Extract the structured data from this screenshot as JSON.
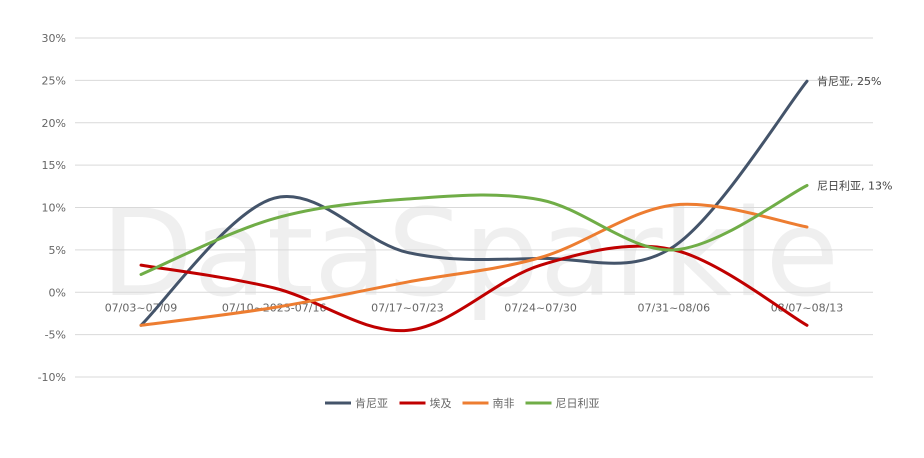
{
  "chart_data": {
    "type": "line",
    "title": "",
    "watermark": "DataSparkle",
    "categories": [
      "07/03~07/09",
      "07/10~2023-07/16",
      "07/17~07/23",
      "07/24~07/30",
      "07/31~08/06",
      "08/07~08/13"
    ],
    "ylim": [
      -10,
      30
    ],
    "yticks": [
      -10,
      -5,
      0,
      5,
      10,
      15,
      20,
      25,
      30
    ],
    "ytick_labels": [
      "-10%",
      "-5%",
      "0%",
      "5%",
      "10%",
      "15%",
      "20%",
      "25%",
      "30%"
    ],
    "grid": true,
    "smooth": true,
    "legend_position": "bottom",
    "series": [
      {
        "name": "肯尼亚",
        "color": "#44546a",
        "values": [
          -3.9,
          11.1,
          4.7,
          4.0,
          5.4,
          24.9
        ],
        "end_label": "肯尼亚, 25%"
      },
      {
        "name": "埃及",
        "color": "#c00000",
        "values": [
          3.2,
          0.5,
          -4.5,
          3.2,
          5.0,
          -3.9
        ]
      },
      {
        "name": "南非",
        "color": "#ed7d31",
        "values": [
          -3.9,
          -1.8,
          1.2,
          4.1,
          10.3,
          7.7
        ]
      },
      {
        "name": "尼日利亚",
        "color": "#70ad47",
        "values": [
          2.1,
          8.7,
          11.0,
          10.9,
          5.0,
          12.6
        ],
        "end_label": "尼日利亚, 13%"
      }
    ]
  }
}
